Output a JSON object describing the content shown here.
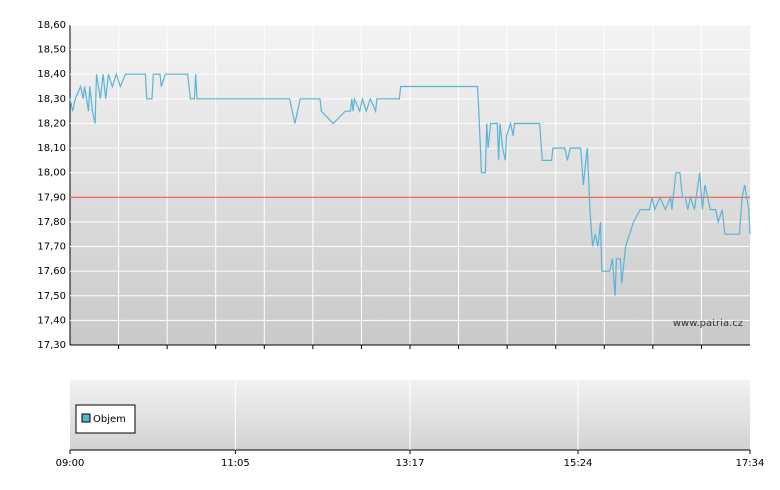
{
  "chart_data": {
    "type": "line",
    "color": "#5ab4d6",
    "x": [
      "09:00",
      "09:02",
      "09:04",
      "09:08",
      "09:10",
      "09:11",
      "09:14",
      "09:15",
      "09:17",
      "09:19",
      "09:20",
      "09:23",
      "09:25",
      "09:27",
      "09:29",
      "09:32",
      "09:35",
      "09:38",
      "09:42",
      "09:57",
      "09:58",
      "10:02",
      "10:03",
      "10:08",
      "10:09",
      "10:12",
      "10:29",
      "10:31",
      "10:34",
      "10:35",
      "10:36",
      "11:46",
      "11:50",
      "11:54",
      "12:09",
      "12:10",
      "12:19",
      "12:28",
      "12:32",
      "12:33",
      "12:34",
      "12:35",
      "12:39",
      "12:41",
      "12:44",
      "12:47",
      "12:51",
      "12:52",
      "13:09",
      "13:10",
      "14:08",
      "14:09",
      "14:11",
      "14:14",
      "14:15",
      "14:16",
      "14:18",
      "14:23",
      "14:24",
      "14:25",
      "14:27",
      "14:29",
      "14:30",
      "14:33",
      "14:35",
      "14:36",
      "14:55",
      "14:57",
      "15:04",
      "15:05",
      "15:14",
      "15:16",
      "15:18",
      "15:26",
      "15:28",
      "15:31",
      "15:33",
      "15:35",
      "15:37",
      "15:39",
      "15:41",
      "15:42",
      "15:48",
      "15:50",
      "15:52",
      "15:53",
      "15:56",
      "15:57",
      "16:00",
      "16:03",
      "16:06",
      "16:11",
      "16:18",
      "16:20",
      "16:22",
      "16:26",
      "16:30",
      "16:34",
      "16:35",
      "16:38",
      "16:41",
      "16:43",
      "16:45",
      "16:47",
      "16:49",
      "16:52",
      "16:56",
      "16:58",
      "17:00",
      "17:04",
      "17:08",
      "17:10",
      "17:13",
      "17:15",
      "17:26",
      "17:28",
      "17:30",
      "17:33",
      "17:34"
    ],
    "values": [
      18.3,
      18.25,
      18.3,
      18.35,
      18.3,
      18.35,
      18.25,
      18.35,
      18.25,
      18.2,
      18.4,
      18.3,
      18.4,
      18.3,
      18.4,
      18.35,
      18.4,
      18.35,
      18.4,
      18.4,
      18.3,
      18.3,
      18.4,
      18.4,
      18.35,
      18.4,
      18.4,
      18.3,
      18.3,
      18.4,
      18.3,
      18.3,
      18.2,
      18.3,
      18.3,
      18.25,
      18.2,
      18.25,
      18.25,
      18.3,
      18.25,
      18.3,
      18.25,
      18.3,
      18.25,
      18.3,
      18.25,
      18.3,
      18.3,
      18.35,
      18.35,
      18.25,
      18.0,
      18.0,
      18.2,
      18.1,
      18.2,
      18.2,
      18.05,
      18.2,
      18.1,
      18.05,
      18.15,
      18.2,
      18.15,
      18.2,
      18.2,
      18.05,
      18.05,
      18.1,
      18.1,
      18.05,
      18.1,
      18.1,
      17.95,
      18.1,
      17.85,
      17.7,
      17.75,
      17.7,
      17.8,
      17.6,
      17.6,
      17.65,
      17.5,
      17.65,
      17.65,
      17.55,
      17.7,
      17.75,
      17.8,
      17.85,
      17.85,
      17.9,
      17.85,
      17.9,
      17.85,
      17.9,
      17.85,
      18.0,
      18.0,
      17.9,
      17.9,
      17.85,
      17.9,
      17.85,
      18.0,
      17.85,
      17.95,
      17.85,
      17.85,
      17.8,
      17.85,
      17.75,
      17.75,
      17.9,
      17.95,
      17.85,
      17.75
    ],
    "xlim": [
      "09:00",
      "17:34"
    ],
    "xticks": [
      "09:00",
      "11:05",
      "13:17",
      "15:24",
      "17:34"
    ],
    "ylim": [
      17.3,
      18.6
    ],
    "yticks": [
      {
        "value": 17.3,
        "label": "17,30"
      },
      {
        "value": 17.4,
        "label": "17,40"
      },
      {
        "value": 17.5,
        "label": "17,50"
      },
      {
        "value": 17.6,
        "label": "17,60"
      },
      {
        "value": 17.7,
        "label": "17,70"
      },
      {
        "value": 17.8,
        "label": "17,80"
      },
      {
        "value": 17.9,
        "label": "17,90"
      },
      {
        "value": 18.0,
        "label": "18,00"
      },
      {
        "value": 18.1,
        "label": "18,10"
      },
      {
        "value": 18.2,
        "label": "18,20"
      },
      {
        "value": 18.3,
        "label": "18,30"
      },
      {
        "value": 18.4,
        "label": "18,40"
      },
      {
        "value": 18.5,
        "label": "18,50"
      },
      {
        "value": 18.6,
        "label": "18,60"
      }
    ],
    "grid": true,
    "reference_line": {
      "value": 17.9,
      "color": "#e8402a"
    },
    "watermark": "www.patria.cz",
    "volume_legend": {
      "label": "Objem",
      "color": "#5ab4d6"
    }
  }
}
